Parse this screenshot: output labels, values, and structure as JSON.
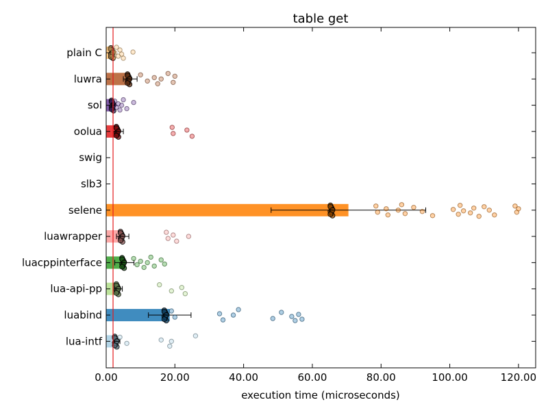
{
  "chart_data": {
    "type": "bar",
    "orientation": "horizontal",
    "title": "table get",
    "xlabel": "execution time (microseconds)",
    "ylabel": "",
    "xlim": [
      0,
      125
    ],
    "xticks": [
      "0.00",
      "20.00",
      "40.00",
      "60.00",
      "80.00",
      "100.00",
      "120.00"
    ],
    "xtick_values": [
      0,
      20,
      40,
      60,
      80,
      100,
      120
    ],
    "grid": false,
    "reference_line": {
      "x": 2.0,
      "color": "#e41a1c"
    },
    "categories": [
      "plain C",
      "luwra",
      "sol",
      "oolua",
      "swig",
      "slb3",
      "selene",
      "luawrapper",
      "luacppinterface",
      "lua-api-pp",
      "luabind",
      "lua-intf"
    ],
    "colors": [
      "#fdbf6f",
      "#b15928",
      "#6a3d9a",
      "#e31a1c",
      "#ffffff",
      "#ffffff",
      "#ff7f00",
      "#fb9a99",
      "#33a02c",
      "#b2df8a",
      "#1f78b4",
      "#a6cee3"
    ],
    "values": [
      1.8,
      7.0,
      2.0,
      3.5,
      0,
      0,
      70.5,
      4.8,
      5.3,
      3.5,
      18.5,
      3.0
    ],
    "errors": [
      0.5,
      2.0,
      0.5,
      1.5,
      0,
      0,
      22.5,
      1.8,
      2.8,
      1.2,
      6.2,
      1.0
    ],
    "outliers": [
      [
        1.0,
        1.5,
        2.0,
        2.2,
        2.5,
        3.0,
        3.5,
        4.0,
        4.5,
        5.0,
        7.8
      ],
      [
        10.0,
        12.0,
        14.0,
        15.0,
        16.0,
        18.0,
        19.5,
        20.0
      ],
      [
        2.5,
        3.0,
        3.5,
        4.0,
        4.5,
        5.0,
        6.0,
        8.0
      ],
      [
        19.2,
        19.5,
        23.5,
        25.0
      ],
      [],
      [],
      [
        78.5,
        79.0,
        81.5,
        82.0,
        85.0,
        86.0,
        87.0,
        89.5,
        92.0,
        95.0,
        101.0,
        102.5,
        103.0,
        104.0,
        106.0,
        107.0,
        108.5,
        110.0,
        111.5,
        113.0,
        119.0,
        119.5,
        120.0
      ],
      [
        17.5,
        18.0,
        19.5,
        20.5,
        24.0
      ],
      [
        8.0,
        9.0,
        10.0,
        11.0,
        12.0,
        13.0,
        14.0,
        16.0,
        17.0
      ],
      [
        15.5,
        19.0,
        22.0,
        23.0
      ],
      [
        19.0,
        20.0,
        33.0,
        34.0,
        37.0,
        38.5,
        48.5,
        51.0,
        54.0,
        55.0,
        56.0,
        57.0
      ],
      [
        4.0,
        6.0,
        16.0,
        18.5,
        19.0,
        26.0
      ]
    ]
  }
}
